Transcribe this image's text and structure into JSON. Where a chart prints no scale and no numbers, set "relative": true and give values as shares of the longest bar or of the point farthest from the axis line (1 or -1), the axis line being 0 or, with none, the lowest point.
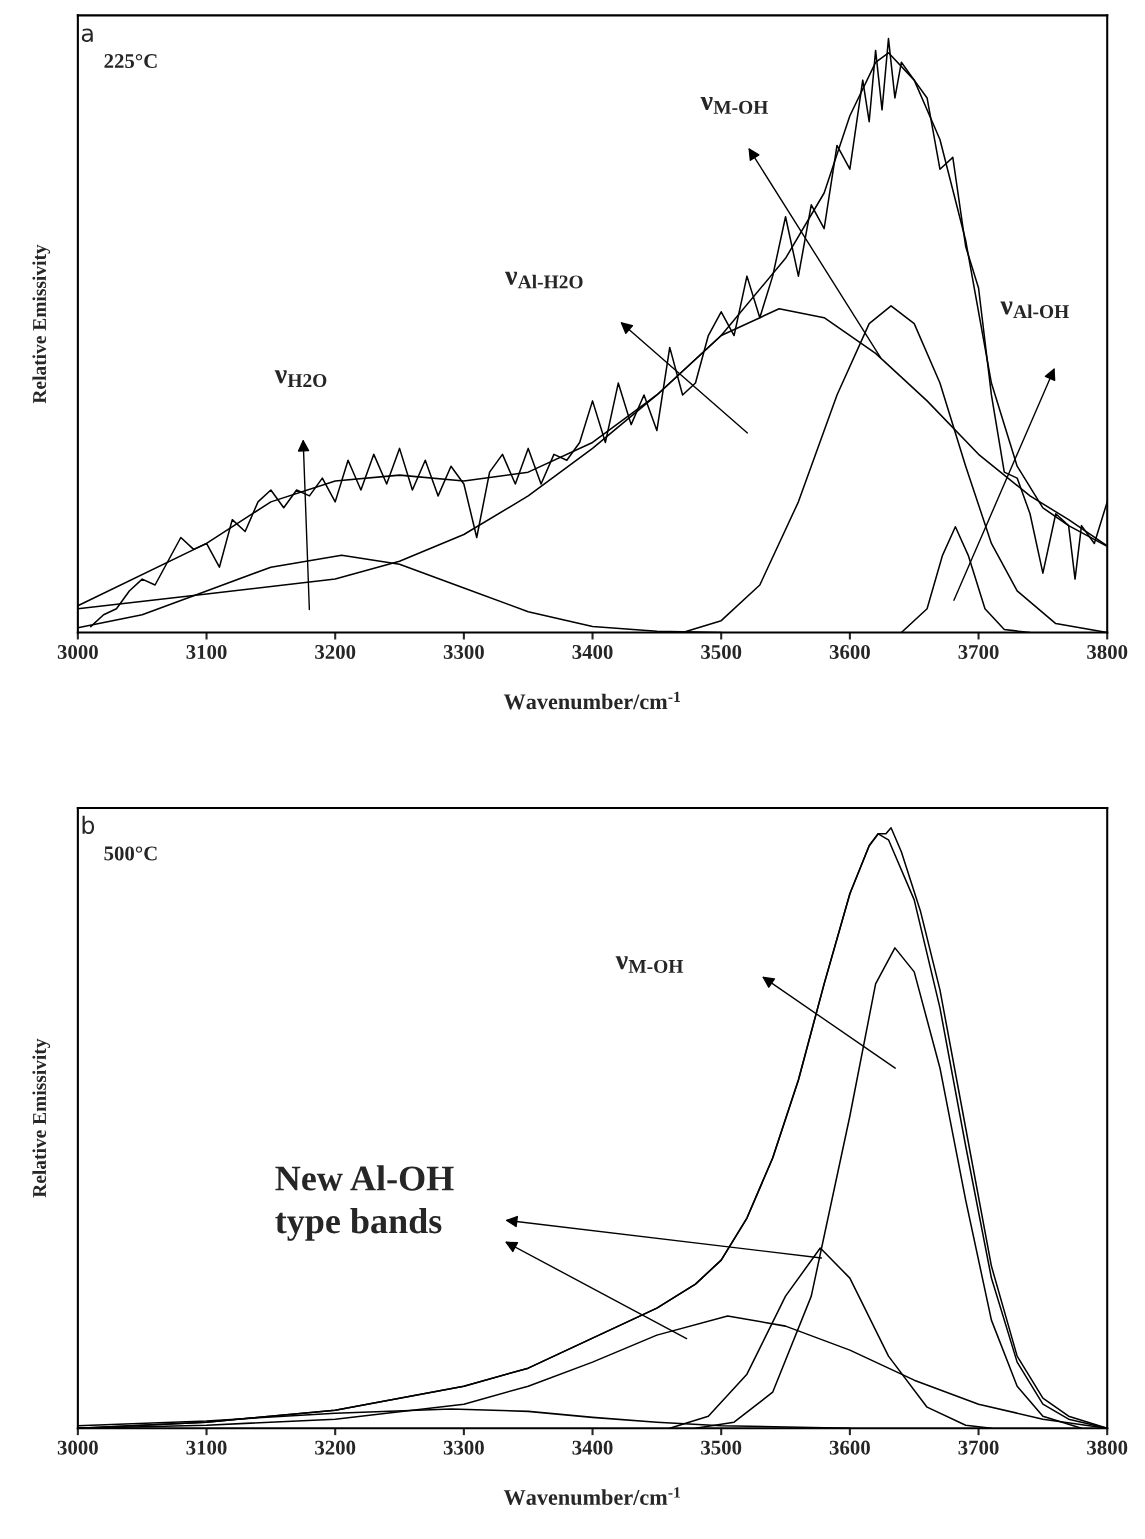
{
  "chart_data": [
    {
      "type": "line",
      "relative": true,
      "tick_labels": "x",
      "xlabel": "Wavenumber/cm$^{-1}$",
      "ylabel": "Relative Emissivity",
      "xlim": [
        3000,
        3800
      ],
      "xticks": [
        3000,
        3100,
        3200,
        3300,
        3400,
        3500,
        3600,
        3700,
        3800
      ],
      "annotations": [
        "a",
        "225°C",
        "ν$_{H2O}$",
        "ν$_{Al-H2O}$",
        "ν$_{M-OH}$",
        "ν$_{Al-OH}$"
      ],
      "series": [
        {
          "color": "#000000",
          "x": [
            3010,
            3020,
            3030,
            3040,
            3050,
            3060,
            3070,
            3080,
            3090,
            3100,
            3110,
            3120,
            3130,
            3140,
            3150,
            3160,
            3170,
            3180,
            3190,
            3200,
            3210,
            3220,
            3230,
            3240,
            3250,
            3260,
            3270,
            3280,
            3290,
            3300,
            3310,
            3320,
            3330,
            3340,
            3350,
            3360,
            3370,
            3380,
            3390,
            3400,
            3410,
            3420,
            3430,
            3440,
            3450,
            3460,
            3470,
            3480,
            3490,
            3500,
            3510,
            3520,
            3530,
            3540,
            3550,
            3560,
            3570,
            3580,
            3590,
            3600,
            3610,
            3615,
            3620,
            3625,
            3630,
            3635,
            3640,
            3650,
            3660,
            3670,
            3680,
            3690,
            3700,
            3710,
            3720,
            3730,
            3740,
            3750,
            3760,
            3770,
            3775,
            3780,
            3790,
            3800
          ],
          "values": [
            0.01,
            0.03,
            0.04,
            0.07,
            0.09,
            0.08,
            0.12,
            0.16,
            0.14,
            0.15,
            0.11,
            0.19,
            0.17,
            0.22,
            0.24,
            0.21,
            0.24,
            0.23,
            0.26,
            0.22,
            0.29,
            0.24,
            0.3,
            0.25,
            0.31,
            0.24,
            0.29,
            0.23,
            0.28,
            0.25,
            0.16,
            0.27,
            0.3,
            0.25,
            0.31,
            0.25,
            0.3,
            0.29,
            0.32,
            0.39,
            0.32,
            0.42,
            0.35,
            0.4,
            0.34,
            0.48,
            0.4,
            0.42,
            0.5,
            0.54,
            0.5,
            0.6,
            0.53,
            0.6,
            0.7,
            0.6,
            0.72,
            0.68,
            0.82,
            0.78,
            0.93,
            0.86,
            0.98,
            0.88,
            1.0,
            0.9,
            0.96,
            0.93,
            0.9,
            0.78,
            0.8,
            0.65,
            0.58,
            0.4,
            0.27,
            0.26,
            0.2,
            0.1,
            0.2,
            0.18,
            0.09,
            0.18,
            0.15,
            0.22
          ]
        },
        {
          "color": "#000000",
          "x": [
            3000,
            3100,
            3150,
            3200,
            3250,
            3300,
            3350,
            3400,
            3450,
            3500,
            3550,
            3580,
            3600,
            3620,
            3630,
            3650,
            3670,
            3690,
            3710,
            3730,
            3750,
            3770,
            3800
          ],
          "values": [
            0.045,
            0.15,
            0.22,
            0.255,
            0.265,
            0.255,
            0.27,
            0.32,
            0.4,
            0.5,
            0.63,
            0.74,
            0.87,
            0.96,
            0.976,
            0.93,
            0.83,
            0.66,
            0.42,
            0.28,
            0.21,
            0.18,
            0.145
          ]
        },
        {
          "color": "#000000",
          "x": [
            3000,
            3050,
            3100,
            3150,
            3205,
            3250,
            3300,
            3350,
            3400,
            3450,
            3500
          ],
          "values": [
            0.008,
            0.03,
            0.07,
            0.11,
            0.13,
            0.115,
            0.075,
            0.035,
            0.01,
            0.002,
            0.0
          ]
        },
        {
          "color": "#000000",
          "x": [
            3000,
            3100,
            3200,
            3250,
            3300,
            3350,
            3400,
            3450,
            3500,
            3545,
            3580,
            3620,
            3660,
            3700,
            3740,
            3770,
            3800
          ],
          "values": [
            0.04,
            0.065,
            0.09,
            0.12,
            0.165,
            0.23,
            0.31,
            0.4,
            0.5,
            0.545,
            0.53,
            0.47,
            0.39,
            0.3,
            0.23,
            0.19,
            0.146
          ]
        },
        {
          "color": "#000000",
          "x": [
            3470,
            3500,
            3530,
            3560,
            3590,
            3615,
            3632,
            3650,
            3670,
            3690,
            3710,
            3730,
            3760,
            3800
          ],
          "values": [
            0.0,
            0.02,
            0.08,
            0.22,
            0.4,
            0.52,
            0.55,
            0.52,
            0.42,
            0.28,
            0.15,
            0.07,
            0.015,
            0.0
          ]
        },
        {
          "color": "#000000",
          "x": [
            3640,
            3660,
            3672,
            3682,
            3692,
            3705,
            3720,
            3740
          ],
          "values": [
            0.0,
            0.04,
            0.13,
            0.178,
            0.13,
            0.04,
            0.005,
            0.0
          ]
        }
      ]
    },
    {
      "type": "line",
      "relative": true,
      "tick_labels": "x",
      "xlabel": "Wavenumber/cm$^{-1}$",
      "ylabel": "Relative Emissivity",
      "xlim": [
        3000,
        3800
      ],
      "xticks": [
        3000,
        3100,
        3200,
        3300,
        3400,
        3500,
        3600,
        3700,
        3800
      ],
      "annotations": [
        "b",
        "500°C",
        "ν$_{M-OH}$",
        "New Al-OH\ntype bands"
      ],
      "series": [
        {
          "color": "#000000",
          "x": [
            3000,
            3100,
            3200,
            3300,
            3350,
            3400,
            3450,
            3480,
            3500,
            3520,
            3540,
            3560,
            3580,
            3600,
            3615,
            3622,
            3628,
            3632,
            3640,
            3655,
            3670,
            3690,
            3710,
            3730,
            3750,
            3770,
            3800
          ],
          "values": [
            0.0,
            0.01,
            0.03,
            0.07,
            0.1,
            0.15,
            0.2,
            0.24,
            0.28,
            0.35,
            0.45,
            0.58,
            0.74,
            0.89,
            0.97,
            0.99,
            0.99,
            1.0,
            0.96,
            0.86,
            0.73,
            0.5,
            0.27,
            0.12,
            0.05,
            0.02,
            0.0
          ]
        },
        {
          "color": "#000000",
          "x": [
            3000,
            3100,
            3200,
            3300,
            3350,
            3400,
            3450,
            3480,
            3500,
            3520,
            3540,
            3560,
            3580,
            3600,
            3615,
            3622,
            3630,
            3650,
            3670,
            3690,
            3710,
            3730,
            3750,
            3770,
            3800
          ],
          "values": [
            0.0,
            0.01,
            0.03,
            0.07,
            0.1,
            0.15,
            0.2,
            0.24,
            0.28,
            0.35,
            0.45,
            0.58,
            0.74,
            0.89,
            0.97,
            0.99,
            0.98,
            0.88,
            0.7,
            0.47,
            0.25,
            0.11,
            0.04,
            0.015,
            0.0
          ]
        },
        {
          "color": "#000000",
          "x": [
            3000,
            3100,
            3200,
            3290,
            3350,
            3400,
            3450,
            3500,
            3600
          ],
          "values": [
            0.004,
            0.012,
            0.025,
            0.032,
            0.028,
            0.018,
            0.01,
            0.004,
            0.0
          ]
        },
        {
          "color": "#000000",
          "x": [
            3000,
            3100,
            3200,
            3300,
            3350,
            3400,
            3450,
            3505,
            3550,
            3600,
            3650,
            3700,
            3750,
            3800
          ],
          "values": [
            0.0,
            0.005,
            0.015,
            0.04,
            0.07,
            0.11,
            0.155,
            0.187,
            0.17,
            0.13,
            0.08,
            0.04,
            0.015,
            0.0
          ]
        },
        {
          "color": "#000000",
          "x": [
            3460,
            3490,
            3520,
            3550,
            3577,
            3600,
            3630,
            3660,
            3690,
            3710
          ],
          "values": [
            0.0,
            0.02,
            0.09,
            0.22,
            0.3,
            0.25,
            0.12,
            0.035,
            0.005,
            0.0
          ]
        },
        {
          "color": "#000000",
          "x": [
            3480,
            3510,
            3540,
            3570,
            3600,
            3620,
            3635,
            3650,
            3670,
            3690,
            3710,
            3730,
            3750,
            3780
          ],
          "values": [
            0.0,
            0.01,
            0.06,
            0.22,
            0.52,
            0.74,
            0.8,
            0.76,
            0.6,
            0.38,
            0.18,
            0.07,
            0.02,
            0.0
          ]
        }
      ]
    }
  ]
}
